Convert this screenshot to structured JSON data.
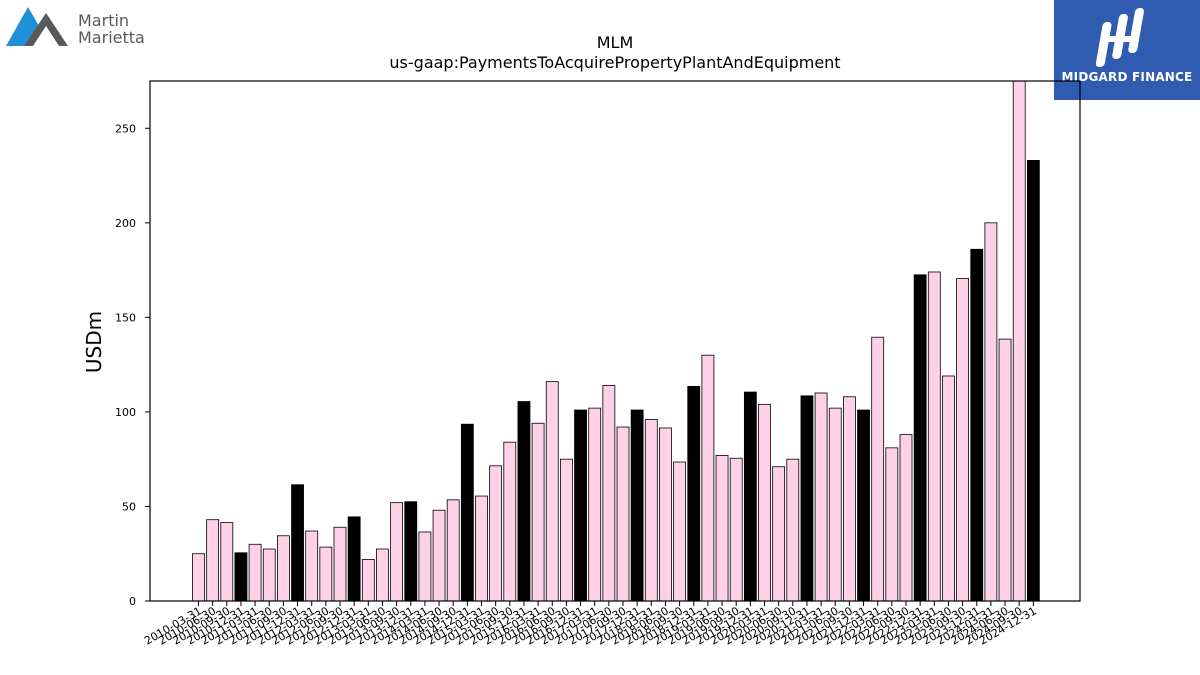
{
  "logos": {
    "left_text_line1": "Martin",
    "left_text_line2": "Marietta",
    "right_text": "MIDGARD FINANCE"
  },
  "chart_data": {
    "type": "bar",
    "title": "MLM",
    "subtitle": "us-gaap:PaymentsToAcquirePropertyPlantAndEquipment",
    "xlabel": "",
    "ylabel": "USDm",
    "ylim": [
      0,
      275
    ],
    "yticks": [
      0,
      50,
      100,
      150,
      200,
      250
    ],
    "grid": false,
    "colors": {
      "quarter": "#ffd1e6",
      "year_end": "#000000",
      "edge": "#000000"
    },
    "categories": [
      "2010-03-31",
      "2010-06-30",
      "2010-09-30",
      "2010-12-31",
      "2011-03-31",
      "2011-06-30",
      "2011-09-30",
      "2011-12-31",
      "2012-03-31",
      "2012-06-30",
      "2012-09-30",
      "2012-12-31",
      "2013-03-31",
      "2013-06-30",
      "2013-09-30",
      "2013-12-31",
      "2014-03-31",
      "2014-06-30",
      "2014-09-30",
      "2014-12-31",
      "2015-03-31",
      "2015-06-30",
      "2015-09-30",
      "2015-12-31",
      "2016-03-31",
      "2016-06-30",
      "2016-09-30",
      "2016-12-31",
      "2017-03-31",
      "2017-06-30",
      "2017-09-30",
      "2017-12-31",
      "2018-03-31",
      "2018-06-30",
      "2018-09-30",
      "2018-12-31",
      "2019-03-31",
      "2019-06-30",
      "2019-09-30",
      "2019-12-31",
      "2020-03-31",
      "2020-06-30",
      "2020-09-30",
      "2020-12-31",
      "2021-03-31",
      "2021-06-30",
      "2021-09-30",
      "2021-12-31",
      "2022-03-31",
      "2022-06-30",
      "2022-09-30",
      "2022-12-31",
      "2023-03-31",
      "2023-06-30",
      "2023-09-30",
      "2023-12-31",
      "2024-03-31",
      "2024-06-30",
      "2024-09-30",
      "2024-12-31"
    ],
    "series": [
      {
        "values": [
          25,
          43,
          41.5,
          25.5,
          30,
          27.5,
          34.5,
          61.5,
          37,
          28.5,
          39,
          44.5,
          22,
          27.5,
          52,
          52.5,
          36.5,
          48,
          53.5,
          93.5,
          55.5,
          71.5,
          84,
          105.5,
          94,
          116,
          75,
          101,
          102,
          114,
          92,
          101,
          96,
          91.5,
          73.5,
          113.5,
          130,
          77,
          75.5,
          110.5,
          104,
          71,
          75,
          108.5,
          110,
          102,
          108,
          101,
          139.5,
          81,
          88,
          172.5,
          174,
          119,
          170.5,
          186,
          200,
          138.5,
          275,
          233
        ]
      }
    ]
  }
}
